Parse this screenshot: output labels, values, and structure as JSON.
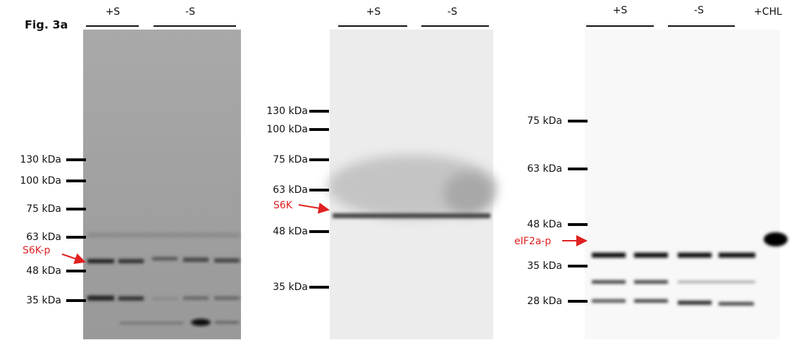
{
  "figure_label": "Fig. 3a",
  "panels": [
    {
      "lanes": [
        "+S",
        "-S"
      ],
      "markers": [
        "130 kDa",
        "100 kDa",
        "75 kDa",
        "63 kDa",
        "48 kDa",
        "35 kDa"
      ],
      "annotation": "S6K-p"
    },
    {
      "lanes": [
        "+S",
        "-S"
      ],
      "markers": [
        "130 kDa",
        "100 kDa",
        "75 kDa",
        "63 kDa",
        "48 kDa",
        "35 kDa"
      ],
      "annotation": "S6K"
    },
    {
      "lanes": [
        "+S",
        "-S",
        "+CHL"
      ],
      "markers": [
        "75 kDa",
        "63 kDa",
        "48 kDa",
        "35 kDa",
        "28 kDa"
      ],
      "annotation": "eIF2a-p"
    }
  ]
}
